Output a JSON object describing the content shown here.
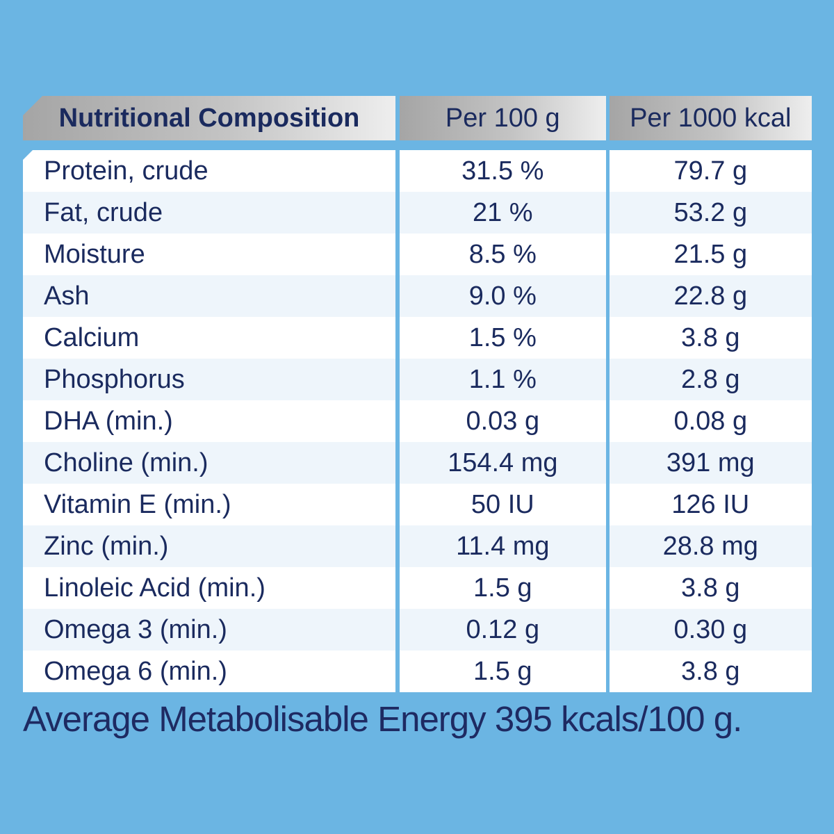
{
  "header": {
    "col1": "Nutritional Composition",
    "col2": "Per 100 g",
    "col3": "Per 1000 kcal"
  },
  "rows": [
    {
      "name": "Protein, crude",
      "per100g": "31.5 %",
      "per1000kcal": "79.7 g"
    },
    {
      "name": "Fat, crude",
      "per100g": "21 %",
      "per1000kcal": "53.2 g"
    },
    {
      "name": "Moisture",
      "per100g": "8.5 %",
      "per1000kcal": "21.5 g"
    },
    {
      "name": "Ash",
      "per100g": "9.0 %",
      "per1000kcal": "22.8 g"
    },
    {
      "name": "Calcium",
      "per100g": "1.5 %",
      "per1000kcal": "3.8 g"
    },
    {
      "name": "Phosphorus",
      "per100g": "1.1 %",
      "per1000kcal": "2.8 g"
    },
    {
      "name": "DHA (min.)",
      "per100g": "0.03 g",
      "per1000kcal": "0.08 g"
    },
    {
      "name": "Choline (min.)",
      "per100g": "154.4 mg",
      "per1000kcal": "391 mg"
    },
    {
      "name": "Vitamin E (min.)",
      "per100g": "50 IU",
      "per1000kcal": "126 IU"
    },
    {
      "name": "Zinc (min.)",
      "per100g": "11.4 mg",
      "per1000kcal": "28.8 mg"
    },
    {
      "name": "Linoleic Acid (min.)",
      "per100g": "1.5 g",
      "per1000kcal": "3.8 g"
    },
    {
      "name": "Omega 3 (min.)",
      "per100g": "0.12 g",
      "per1000kcal": "0.30 g"
    },
    {
      "name": "Omega 6 (min.)",
      "per100g": "1.5 g",
      "per1000kcal": "3.8 g"
    }
  ],
  "footer": "Average Metabolisable Energy 395 kcals/100 g.",
  "colors": {
    "background": "#6bb5e3",
    "text": "#1a2a5e",
    "row_alt": "#eef5fb"
  }
}
